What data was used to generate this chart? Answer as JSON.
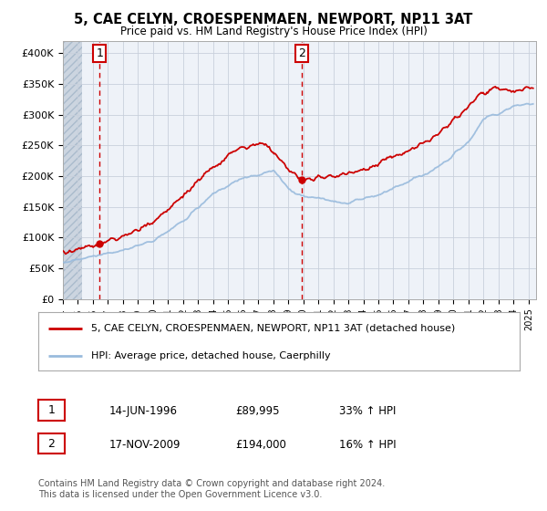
{
  "title": "5, CAE CELYN, CROESPENMAEN, NEWPORT, NP11 3AT",
  "subtitle": "Price paid vs. HM Land Registry's House Price Index (HPI)",
  "legend_line1": "5, CAE CELYN, CROESPENMAEN, NEWPORT, NP11 3AT (detached house)",
  "legend_line2": "HPI: Average price, detached house, Caerphilly",
  "annotation1_label": "1",
  "annotation1_date": "14-JUN-1996",
  "annotation1_price": "£89,995",
  "annotation1_hpi": "33% ↑ HPI",
  "annotation2_label": "2",
  "annotation2_date": "17-NOV-2009",
  "annotation2_price": "£194,000",
  "annotation2_hpi": "16% ↑ HPI",
  "footer": "Contains HM Land Registry data © Crown copyright and database right 2024.\nThis data is licensed under the Open Government Licence v3.0.",
  "price_color": "#cc0000",
  "hpi_color": "#99bbdd",
  "annotation_vline_color": "#cc0000",
  "ylim": [
    0,
    420000
  ],
  "yticks": [
    0,
    50000,
    100000,
    150000,
    200000,
    250000,
    300000,
    350000,
    400000
  ],
  "ytick_labels": [
    "£0",
    "£50K",
    "£100K",
    "£150K",
    "£200K",
    "£250K",
    "£300K",
    "£350K",
    "£400K"
  ],
  "sale1_year": 1996.45,
  "sale1_price": 89995,
  "sale2_year": 2009.88,
  "sale2_price": 194000,
  "xmin": 1994,
  "xmax": 2025.5,
  "xticks": [
    1994,
    1995,
    1996,
    1997,
    1998,
    1999,
    2000,
    2001,
    2002,
    2003,
    2004,
    2005,
    2006,
    2007,
    2008,
    2009,
    2010,
    2011,
    2012,
    2013,
    2014,
    2015,
    2016,
    2017,
    2018,
    2019,
    2020,
    2021,
    2022,
    2023,
    2024,
    2025
  ],
  "bg_hatch_color": "#d0d8e8",
  "bg_white_color": "#eef2f8"
}
